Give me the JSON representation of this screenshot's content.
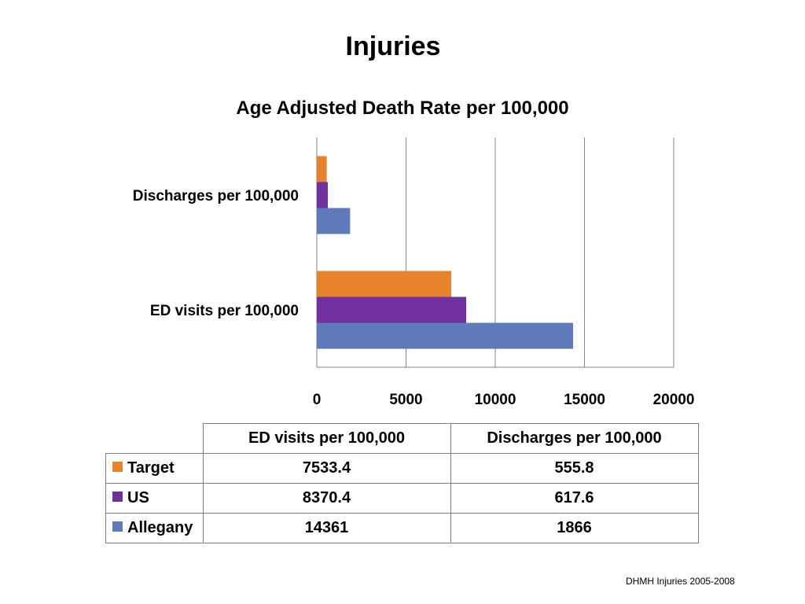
{
  "slide": {
    "title": "Injuries",
    "footer": "DHMH Injuries 2005-2008"
  },
  "chart_data": {
    "type": "bar",
    "orientation": "horizontal",
    "title": "Age Adjusted Death Rate per 100,000",
    "categories": [
      "ED visits per 100,000",
      "Discharges per 100,000"
    ],
    "series": [
      {
        "name": "Target",
        "color": "#E8822B",
        "values": [
          7533.4,
          555.8
        ]
      },
      {
        "name": "US",
        "color": "#7030A0",
        "values": [
          8370.4,
          617.6
        ]
      },
      {
        "name": "Allegany",
        "color": "#5E7AB8",
        "values": [
          14361,
          1866
        ]
      }
    ],
    "xlim": [
      0,
      20000
    ],
    "xticks": [
      "0",
      "5000",
      "10000",
      "15000",
      "20000"
    ],
    "grid": true,
    "legend": "data table below chart"
  },
  "table": {
    "headers": [
      "ED visits per 100,000",
      "Discharges per 100,000"
    ],
    "rows": [
      {
        "label": "Target",
        "color": "#E8822B",
        "values": [
          "7533.4",
          "555.8"
        ]
      },
      {
        "label": "US",
        "color": "#7030A0",
        "values": [
          "8370.4",
          "617.6"
        ]
      },
      {
        "label": "Allegany",
        "color": "#5E7AB8",
        "values": [
          "14361",
          "1866"
        ]
      }
    ]
  }
}
